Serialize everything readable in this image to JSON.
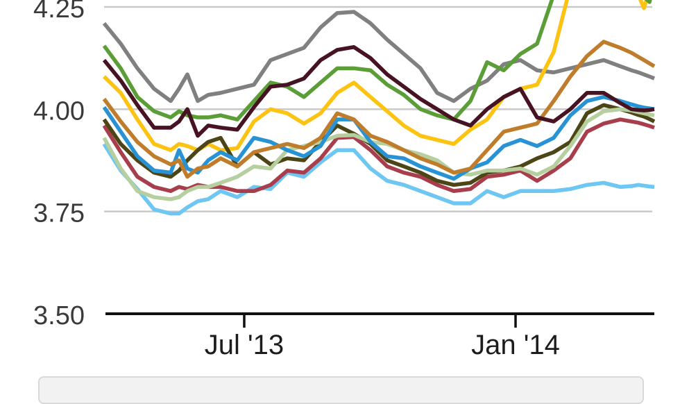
{
  "chart_data": {
    "type": "line",
    "title": "",
    "xlabel": "",
    "ylabel": "",
    "ylim": [
      3.5,
      4.267
    ],
    "grid": true,
    "legend_position": "bottom (collapsed/cut off at screenshot edge, no labels visible)",
    "colors": {
      "grid": "#c9c9c9",
      "axis": "#111111",
      "y_label": "#3a3a3a",
      "x_label": "#1c1c1c",
      "legend_fill": "#f2f2f2",
      "legend_border": "#d9d9d9"
    },
    "y_axis": {
      "entries": [
        {
          "label": "4.25",
          "value": 4.25
        },
        {
          "label": "4.00",
          "value": 4.0
        },
        {
          "label": "3.75",
          "value": 3.75
        },
        {
          "label": "3.50",
          "value": 3.5
        }
      ]
    },
    "y_gridlines": [
      4.25,
      4.0,
      3.75
    ],
    "x_axis": {
      "ticks": [
        {
          "label": "Jul '13",
          "pos": 0.2547
        },
        {
          "label": "Jan '14",
          "pos": 0.7478
        }
      ]
    },
    "x": [
      0,
      0.0303,
      0.0605,
      0.0908,
      0.1211,
      0.1362,
      0.1513,
      0.1702,
      0.1892,
      0.2119,
      0.2421,
      0.2724,
      0.3027,
      0.3329,
      0.3632,
      0.3934,
      0.4237,
      0.454,
      0.4842,
      0.5145,
      0.5448,
      0.575,
      0.6053,
      0.6355,
      0.6658,
      0.6961,
      0.7263,
      0.7566,
      0.7869,
      0.8171,
      0.8474,
      0.8777,
      0.9079,
      0.9382,
      0.9584,
      0.971,
      0.9811,
      0.9912,
      1.0
    ],
    "series": [
      {
        "name": "gray",
        "color": "#808080",
        "values": [
          4.21,
          4.16,
          4.1,
          4.05,
          4.02,
          4.05,
          4.085,
          4.02,
          4.035,
          4.04,
          4.05,
          4.06,
          4.12,
          4.135,
          4.15,
          4.2,
          4.235,
          4.238,
          4.21,
          4.17,
          4.135,
          4.1,
          4.04,
          4.02,
          4.05,
          4.07,
          4.11,
          4.12,
          4.095,
          4.09,
          4.1,
          4.11,
          4.12,
          4.105,
          4.095,
          4.09,
          4.085,
          4.08,
          4.075
        ]
      },
      {
        "name": "yellow",
        "color": "#fcc313",
        "values": [
          4.08,
          4.04,
          3.975,
          3.915,
          3.9,
          3.915,
          3.91,
          3.9,
          3.915,
          3.9,
          3.905,
          3.97,
          4.0,
          3.99,
          3.965,
          3.99,
          4.04,
          4.065,
          4.03,
          3.995,
          3.96,
          3.935,
          3.925,
          3.915,
          3.95,
          3.975,
          4.03,
          4.05,
          4.06,
          4.14,
          4.3,
          4.42,
          4.45,
          4.4,
          4.33,
          4.28,
          4.247,
          4.29,
          4.35
        ]
      },
      {
        "name": "green",
        "color": "#5b9e38",
        "values": [
          4.155,
          4.1,
          4.03,
          3.995,
          3.98,
          3.995,
          3.985,
          3.98,
          3.98,
          3.985,
          3.975,
          4.02,
          4.065,
          4.055,
          4.03,
          4.065,
          4.1,
          4.1,
          4.095,
          4.06,
          4.035,
          4.0,
          3.985,
          3.975,
          4.02,
          4.115,
          4.095,
          4.135,
          4.16,
          4.28,
          4.4,
          4.46,
          4.47,
          4.44,
          4.36,
          4.31,
          4.275,
          4.262,
          4.31
        ]
      },
      {
        "name": "lightblue",
        "color": "#6ec6f2",
        "values": [
          3.915,
          3.85,
          3.805,
          3.755,
          3.745,
          3.745,
          3.76,
          3.775,
          3.78,
          3.8,
          3.785,
          3.81,
          3.805,
          3.845,
          3.835,
          3.87,
          3.9,
          3.9,
          3.855,
          3.825,
          3.815,
          3.8,
          3.785,
          3.77,
          3.77,
          3.8,
          3.785,
          3.8,
          3.8,
          3.8,
          3.805,
          3.815,
          3.82,
          3.81,
          3.812,
          3.815,
          3.813,
          3.811,
          3.81
        ]
      },
      {
        "name": "crimson",
        "color": "#a83e4c",
        "values": [
          3.96,
          3.895,
          3.835,
          3.81,
          3.8,
          3.81,
          3.805,
          3.815,
          3.81,
          3.81,
          3.8,
          3.8,
          3.815,
          3.85,
          3.845,
          3.88,
          3.93,
          3.932,
          3.9,
          3.86,
          3.845,
          3.835,
          3.815,
          3.8,
          3.805,
          3.835,
          3.84,
          3.85,
          3.825,
          3.85,
          3.88,
          3.945,
          3.965,
          3.975,
          3.97,
          3.967,
          3.963,
          3.959,
          3.955
        ]
      },
      {
        "name": "olive",
        "color": "#4c4616",
        "values": [
          3.975,
          3.915,
          3.875,
          3.845,
          3.835,
          3.85,
          3.875,
          3.9,
          3.92,
          3.93,
          3.86,
          3.895,
          3.865,
          3.88,
          3.875,
          3.92,
          3.96,
          3.94,
          3.915,
          3.875,
          3.86,
          3.845,
          3.825,
          3.815,
          3.82,
          3.845,
          3.85,
          3.86,
          3.88,
          3.895,
          3.92,
          3.99,
          4.01,
          4.0,
          3.992,
          3.986,
          3.982,
          3.976,
          3.97
        ]
      },
      {
        "name": "sage",
        "color": "#b6cf9f",
        "values": [
          3.93,
          3.855,
          3.8,
          3.785,
          3.78,
          3.785,
          3.8,
          3.81,
          3.81,
          3.82,
          3.835,
          3.86,
          3.855,
          3.9,
          3.91,
          3.92,
          3.935,
          3.937,
          3.92,
          3.915,
          3.9,
          3.89,
          3.875,
          3.845,
          3.84,
          3.85,
          3.85,
          3.855,
          3.84,
          3.86,
          3.91,
          3.97,
          3.995,
          4.0,
          3.997,
          3.993,
          3.99,
          3.987,
          3.985
        ]
      },
      {
        "name": "blue",
        "color": "#2793d4",
        "values": [
          4.005,
          3.945,
          3.885,
          3.85,
          3.845,
          3.9,
          3.855,
          3.845,
          3.875,
          3.895,
          3.875,
          3.93,
          3.92,
          3.9,
          3.885,
          3.91,
          3.975,
          3.975,
          3.92,
          3.885,
          3.88,
          3.86,
          3.845,
          3.83,
          3.855,
          3.87,
          3.91,
          3.925,
          3.91,
          3.93,
          3.985,
          4.02,
          4.03,
          4.02,
          4.012,
          4.007,
          4.004,
          4.002,
          4.0
        ]
      },
      {
        "name": "orange",
        "color": "#bf7d2b",
        "values": [
          4.025,
          3.97,
          3.92,
          3.885,
          3.865,
          3.875,
          3.835,
          3.855,
          3.86,
          3.88,
          3.86,
          3.895,
          3.905,
          3.915,
          3.905,
          3.93,
          3.99,
          3.975,
          3.935,
          3.92,
          3.9,
          3.88,
          3.865,
          3.845,
          3.855,
          3.9,
          3.945,
          3.955,
          3.965,
          4.02,
          4.08,
          4.13,
          4.165,
          4.15,
          4.138,
          4.128,
          4.12,
          4.112,
          4.105
        ]
      },
      {
        "name": "maroon",
        "color": "#471323",
        "values": [
          4.12,
          4.07,
          4.01,
          3.955,
          3.955,
          3.97,
          4.0,
          3.935,
          3.96,
          3.955,
          3.95,
          4.005,
          4.055,
          4.06,
          4.075,
          4.12,
          4.145,
          4.152,
          4.125,
          4.085,
          4.055,
          4.025,
          4.0,
          3.975,
          3.96,
          4.0,
          4.03,
          4.05,
          3.98,
          3.97,
          4.0,
          4.04,
          4.04,
          4.015,
          4.0,
          3.998,
          3.997,
          3.998,
          4.0
        ]
      }
    ]
  },
  "legend": {
    "note": "only top edge of legend panel visible, no text rendered"
  }
}
